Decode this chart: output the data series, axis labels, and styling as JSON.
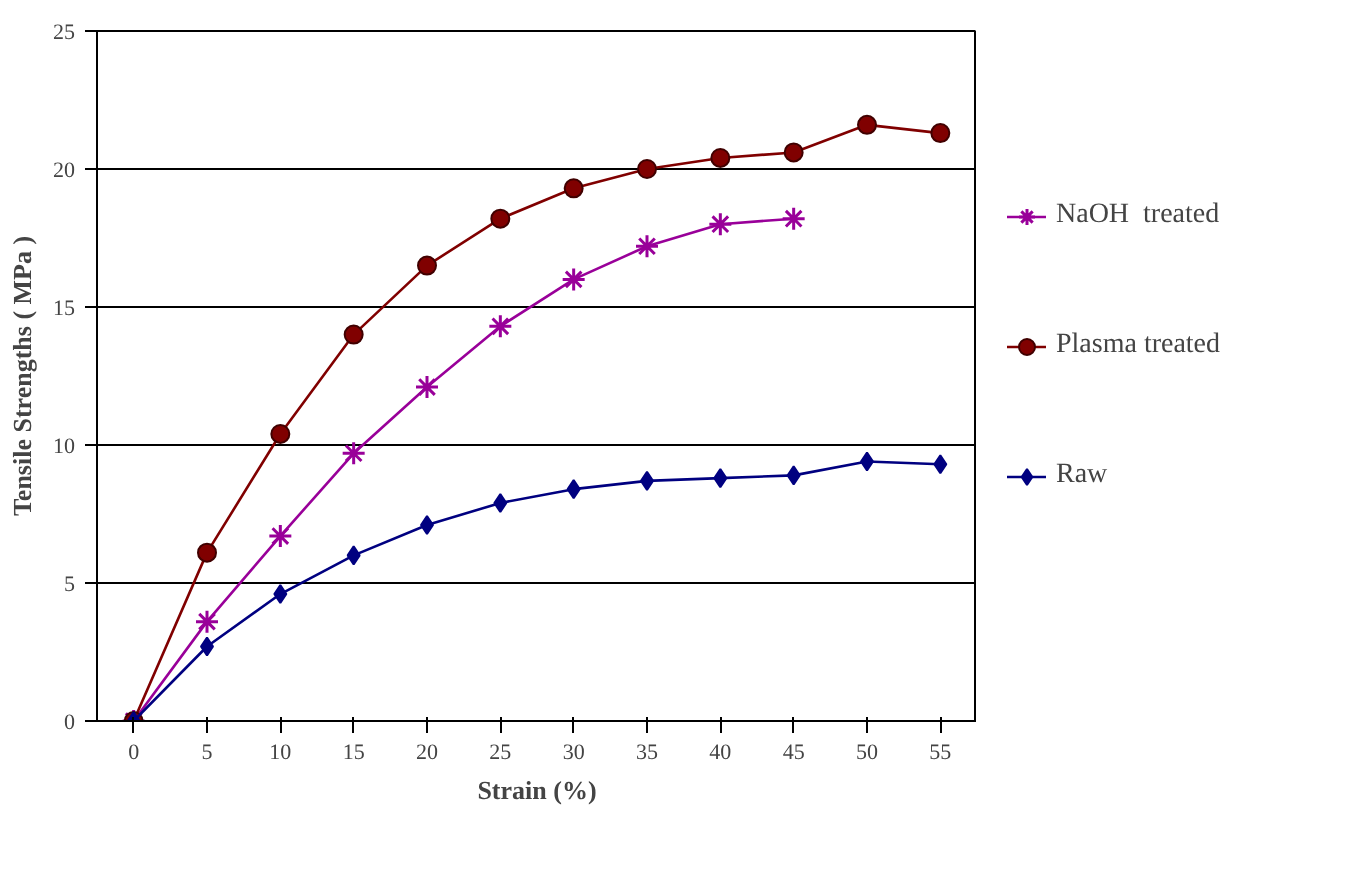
{
  "chart_data": {
    "type": "line",
    "xlabel": "Strain (%)",
    "ylabel": "Tensile Strengths ( MPa )",
    "x": [
      0,
      5,
      10,
      15,
      20,
      25,
      30,
      35,
      40,
      45,
      50,
      55
    ],
    "series": [
      {
        "name": "NaOH  treated",
        "color": "#990099",
        "marker": "cross",
        "values": [
          0,
          3.6,
          6.7,
          9.7,
          12.1,
          14.3,
          16.0,
          17.2,
          18.0,
          18.2,
          null,
          null
        ]
      },
      {
        "name": "Plasma treated",
        "color": "#800000",
        "marker": "circle",
        "values": [
          0,
          6.1,
          10.4,
          14.0,
          16.5,
          18.2,
          19.3,
          20.0,
          20.4,
          20.6,
          21.6,
          21.3
        ]
      },
      {
        "name": "Raw",
        "color": "#000080",
        "marker": "diamond",
        "values": [
          0,
          2.7,
          4.6,
          6.0,
          7.1,
          7.9,
          8.4,
          8.7,
          8.8,
          8.9,
          9.4,
          9.3
        ]
      }
    ],
    "xlim": [
      -2.5,
      57.5
    ],
    "xticks": [
      0,
      5,
      10,
      15,
      20,
      25,
      30,
      35,
      40,
      45,
      50,
      55
    ],
    "ylim": [
      0,
      25
    ],
    "yticks": [
      0,
      5,
      10,
      15,
      20,
      25
    ],
    "grid": "y",
    "legend": "right",
    "line_style": "solid"
  }
}
